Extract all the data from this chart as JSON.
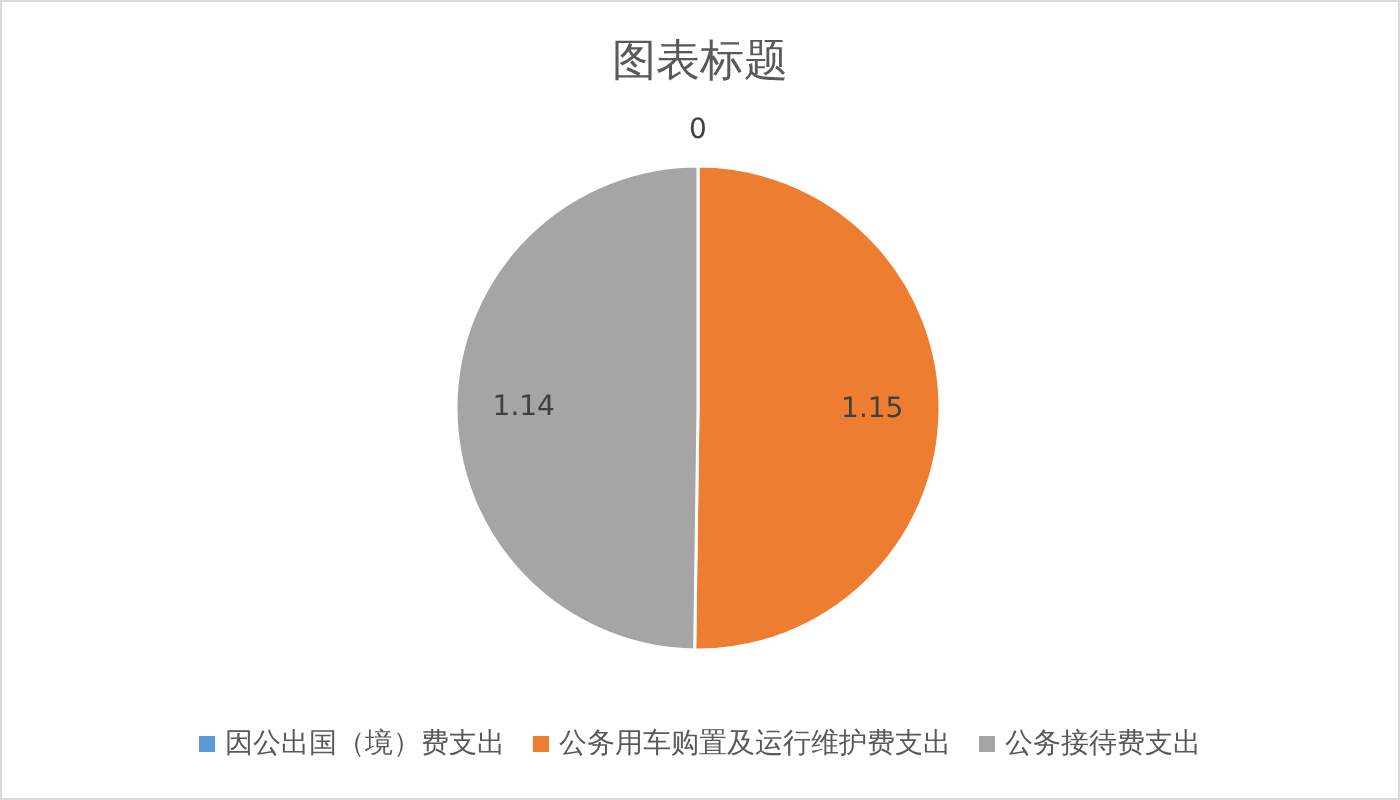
{
  "chart_data": {
    "type": "pie",
    "title": "图表标题",
    "categories": [
      "因公出国（境）费支出",
      "公务用车购置及运行维护费支出",
      "公务接待费支出"
    ],
    "values": [
      0,
      1.15,
      1.14
    ],
    "colors": [
      "#5b9bd5",
      "#ed7d31",
      "#a5a5a5"
    ],
    "value_labels": [
      "0",
      "1.15",
      "1.14"
    ],
    "legend": "bottom"
  }
}
